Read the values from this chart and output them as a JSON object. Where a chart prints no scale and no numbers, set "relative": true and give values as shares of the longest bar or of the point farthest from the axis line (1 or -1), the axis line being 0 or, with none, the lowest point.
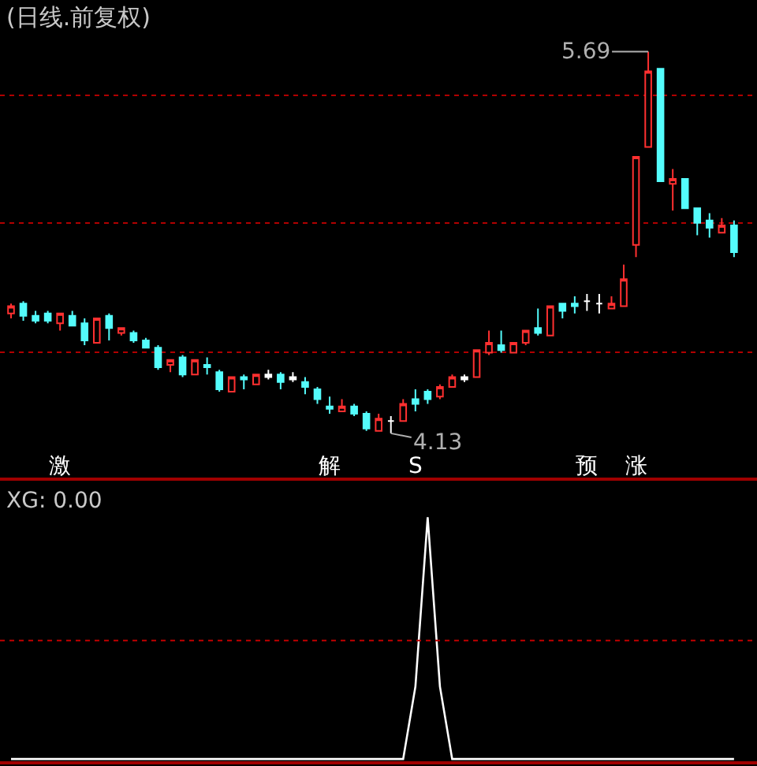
{
  "chart_data": [
    {
      "type": "candlestick",
      "title": "(日线.前复权)",
      "categories": [
        null,
        null,
        null,
        null,
        "激",
        null,
        null,
        null,
        null,
        null,
        null,
        null,
        null,
        null,
        null,
        null,
        null,
        null,
        null,
        null,
        null,
        null,
        null,
        null,
        null,
        null,
        "解",
        null,
        null,
        null,
        null,
        null,
        null,
        "S",
        null,
        null,
        null,
        null,
        null,
        null,
        null,
        null,
        null,
        null,
        null,
        null,
        null,
        "预",
        null,
        null,
        null,
        "涨",
        null,
        null,
        null,
        null,
        null,
        null,
        null,
        null
      ],
      "ohlc": [
        [
          4.62,
          4.66,
          4.6,
          4.65
        ],
        [
          4.66,
          4.67,
          4.59,
          4.61
        ],
        [
          4.61,
          4.63,
          4.58,
          4.59
        ],
        [
          4.62,
          4.63,
          4.58,
          4.59
        ],
        [
          4.58,
          4.62,
          4.55,
          4.62
        ],
        [
          4.61,
          4.63,
          4.57,
          4.57
        ],
        [
          4.58,
          4.6,
          4.49,
          4.51
        ],
        [
          4.5,
          4.6,
          4.5,
          4.6
        ],
        [
          4.61,
          4.62,
          4.51,
          4.56
        ],
        [
          4.54,
          4.56,
          4.53,
          4.56
        ],
        [
          4.54,
          4.55,
          4.5,
          4.51
        ],
        [
          4.51,
          4.52,
          4.48,
          4.48
        ],
        [
          4.48,
          4.49,
          4.39,
          4.4
        ],
        [
          4.41,
          4.43,
          4.38,
          4.43
        ],
        [
          4.44,
          4.45,
          4.36,
          4.37
        ],
        [
          4.37,
          4.43,
          4.37,
          4.43
        ],
        [
          4.41,
          4.44,
          4.37,
          4.4
        ],
        [
          4.38,
          4.39,
          4.3,
          4.31
        ],
        [
          4.3,
          4.36,
          4.3,
          4.36
        ],
        [
          4.36,
          4.37,
          4.31,
          4.35
        ],
        [
          4.33,
          4.37,
          4.33,
          4.37
        ],
        [
          4.37,
          4.39,
          4.35,
          4.36
        ],
        [
          4.37,
          4.38,
          4.31,
          4.34
        ],
        [
          4.36,
          4.38,
          4.34,
          4.35
        ],
        [
          4.34,
          4.36,
          4.29,
          4.32
        ],
        [
          4.31,
          4.32,
          4.25,
          4.27
        ],
        [
          4.24,
          4.28,
          4.21,
          4.23
        ],
        [
          4.22,
          4.27,
          4.22,
          4.24
        ],
        [
          4.24,
          4.25,
          4.2,
          4.21
        ],
        [
          4.21,
          4.22,
          4.14,
          4.15
        ],
        [
          4.14,
          4.21,
          4.14,
          4.19
        ],
        [
          4.18,
          4.2,
          4.13,
          4.18
        ],
        [
          4.18,
          4.27,
          4.18,
          4.25
        ],
        [
          4.27,
          4.31,
          4.22,
          4.25
        ],
        [
          4.3,
          4.31,
          4.25,
          4.27
        ],
        [
          4.28,
          4.33,
          4.27,
          4.32
        ],
        [
          4.32,
          4.37,
          4.32,
          4.36
        ],
        [
          4.36,
          4.37,
          4.34,
          4.35
        ],
        [
          4.36,
          4.47,
          4.36,
          4.47
        ],
        [
          4.46,
          4.55,
          4.45,
          4.5
        ],
        [
          4.49,
          4.55,
          4.46,
          4.47
        ],
        [
          4.46,
          4.5,
          4.46,
          4.5
        ],
        [
          4.5,
          4.55,
          4.49,
          4.55
        ],
        [
          4.56,
          4.64,
          4.53,
          4.54
        ],
        [
          4.53,
          4.65,
          4.53,
          4.65
        ],
        [
          4.66,
          4.66,
          4.6,
          4.63
        ],
        [
          4.66,
          4.69,
          4.62,
          4.65
        ],
        [
          4.67,
          4.7,
          4.63,
          4.67
        ],
        [
          4.66,
          4.7,
          4.62,
          4.66
        ],
        [
          4.64,
          4.69,
          4.64,
          4.66
        ],
        [
          4.65,
          4.82,
          4.65,
          4.76
        ],
        [
          4.9,
          5.26,
          4.85,
          5.26
        ],
        [
          5.3,
          5.69,
          5.3,
          5.61
        ],
        [
          5.62,
          5.62,
          5.16,
          5.16
        ],
        [
          5.15,
          5.21,
          5.04,
          5.17
        ],
        [
          5.17,
          5.17,
          5.05,
          5.05
        ],
        [
          5.05,
          5.05,
          4.94,
          4.99
        ],
        [
          5.0,
          5.03,
          4.93,
          4.97
        ],
        [
          4.95,
          5.01,
          4.95,
          4.98
        ],
        [
          4.98,
          5.0,
          4.85,
          4.87
        ]
      ],
      "colors": [
        "#ff3030",
        "#54fcfc",
        "#54fcfc",
        "#54fcfc",
        "#ff3030",
        "#54fcfc",
        "#54fcfc",
        "#ff3030",
        "#54fcfc",
        "#ff3030",
        "#54fcfc",
        "#54fcfc",
        "#54fcfc",
        "#ff3030",
        "#54fcfc",
        "#ff3030",
        "#54fcfc",
        "#54fcfc",
        "#ff3030",
        "#54fcfc",
        "#ff3030",
        "#ffffff",
        "#54fcfc",
        "#ffffff",
        "#54fcfc",
        "#54fcfc",
        "#54fcfc",
        "#ff3030",
        "#54fcfc",
        "#54fcfc",
        "#ff3030",
        "#ffffff",
        "#ff3030",
        "#54fcfc",
        "#54fcfc",
        "#ff3030",
        "#ff3030",
        "#ffffff",
        "#ff3030",
        "#ff3030",
        "#54fcfc",
        "#ff3030",
        "#ff3030",
        "#54fcfc",
        "#ff3030",
        "#54fcfc",
        "#54fcfc",
        "#ffffff",
        "#ffffff",
        "#ff3030",
        "#ff3030",
        "#ff3030",
        "#ff3030",
        "#54fcfc",
        "#ff3030",
        "#54fcfc",
        "#54fcfc",
        "#54fcfc",
        "#ff3030",
        "#54fcfc"
      ],
      "annotations": [
        "5.69",
        "4.13"
      ],
      "yticks": [
        {
          "value": 5.51,
          "label": null
        },
        {
          "value": 4.99,
          "label": null
        },
        {
          "value": 4.46,
          "label": null
        }
      ],
      "grid": "y"
    },
    {
      "type": "line",
      "title": "XG: 0.00",
      "relative": true,
      "categories": [
        null,
        null,
        null,
        null,
        null,
        null,
        null,
        null,
        null,
        null,
        null,
        null,
        null,
        null,
        null,
        null,
        null,
        null,
        null,
        null,
        null,
        null,
        null,
        null,
        null,
        null,
        null,
        null,
        null,
        null,
        null,
        null,
        null,
        null,
        null,
        null,
        null,
        null,
        null,
        null,
        null,
        null,
        null,
        null,
        null,
        null,
        null,
        null,
        null,
        null,
        null,
        null,
        null,
        null,
        null,
        null,
        null,
        null,
        null,
        null
      ],
      "series": [
        {
          "color": "#ffffff",
          "values": [
            0,
            0,
            0,
            0,
            0,
            0,
            0,
            0,
            0,
            0,
            0,
            0,
            0,
            0,
            0,
            0,
            0,
            0,
            0,
            0,
            0,
            0,
            0,
            0,
            0,
            0,
            0,
            0,
            0,
            0,
            0,
            0,
            0,
            0.3,
            1,
            0.3,
            0,
            0,
            0,
            0,
            0,
            0,
            0,
            0,
            0,
            0,
            0,
            0,
            0,
            0,
            0,
            0,
            0,
            0,
            0,
            0,
            0,
            0,
            0,
            0
          ]
        }
      ],
      "ref_lines": [
        {
          "axis": "y",
          "value": 0.49,
          "color": "#c00000",
          "line_style": "dotted"
        }
      ]
    }
  ]
}
